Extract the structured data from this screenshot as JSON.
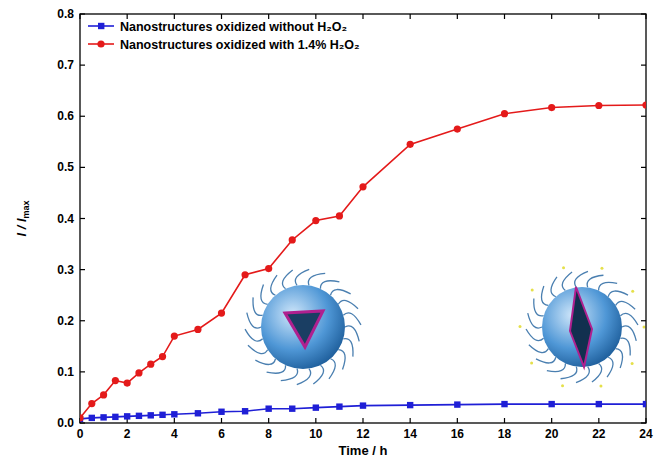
{
  "chart_data": {
    "type": "line",
    "xlabel": "Time / h",
    "ylabel": "I / Imax",
    "x": [
      0,
      0.5,
      1,
      1.5,
      2,
      2.5,
      3,
      3.5,
      4,
      5,
      6,
      7,
      8,
      9,
      10,
      11,
      12,
      14,
      16,
      18,
      20,
      22,
      24
    ],
    "series": [
      {
        "name": "Nanostructures oxidized without H₂O₂",
        "color": "#1f1fd6",
        "marker": "square",
        "values": [
          0.008,
          0.01,
          0.011,
          0.012,
          0.013,
          0.014,
          0.015,
          0.016,
          0.017,
          0.019,
          0.022,
          0.023,
          0.028,
          0.028,
          0.03,
          0.032,
          0.034,
          0.035,
          0.036,
          0.037,
          0.037,
          0.037,
          0.037
        ]
      },
      {
        "name": "Nanostructures oxidized with 1.4% H₂O₂",
        "color": "#e41a1a",
        "marker": "circle",
        "values": [
          0.01,
          0.038,
          0.055,
          0.083,
          0.078,
          0.098,
          0.115,
          0.13,
          0.17,
          0.183,
          0.215,
          0.29,
          0.302,
          0.358,
          0.396,
          0.405,
          0.462,
          0.545,
          0.575,
          0.605,
          0.617,
          0.621,
          0.622
        ]
      }
    ],
    "xlim": [
      0,
      24
    ],
    "xticks": [
      0,
      2,
      4,
      6,
      8,
      10,
      12,
      14,
      16,
      18,
      20,
      22,
      24
    ],
    "ylim": [
      0,
      0.8
    ],
    "yticks": [
      {
        "value": 0,
        "label": "0.0"
      },
      {
        "value": 0.1,
        "label": "0.1"
      },
      {
        "value": 0.2,
        "label": "0.2"
      },
      {
        "value": 0.3,
        "label": "0.3"
      },
      {
        "value": 0.4,
        "label": "0.4"
      },
      {
        "value": 0.5,
        "label": "0.5"
      },
      {
        "value": 0.6,
        "label": "0.6"
      },
      {
        "value": 0.7,
        "label": "0.7"
      },
      {
        "value": 0.8,
        "label": "0.8"
      }
    ],
    "legend": "upper left",
    "grid": false
  }
}
